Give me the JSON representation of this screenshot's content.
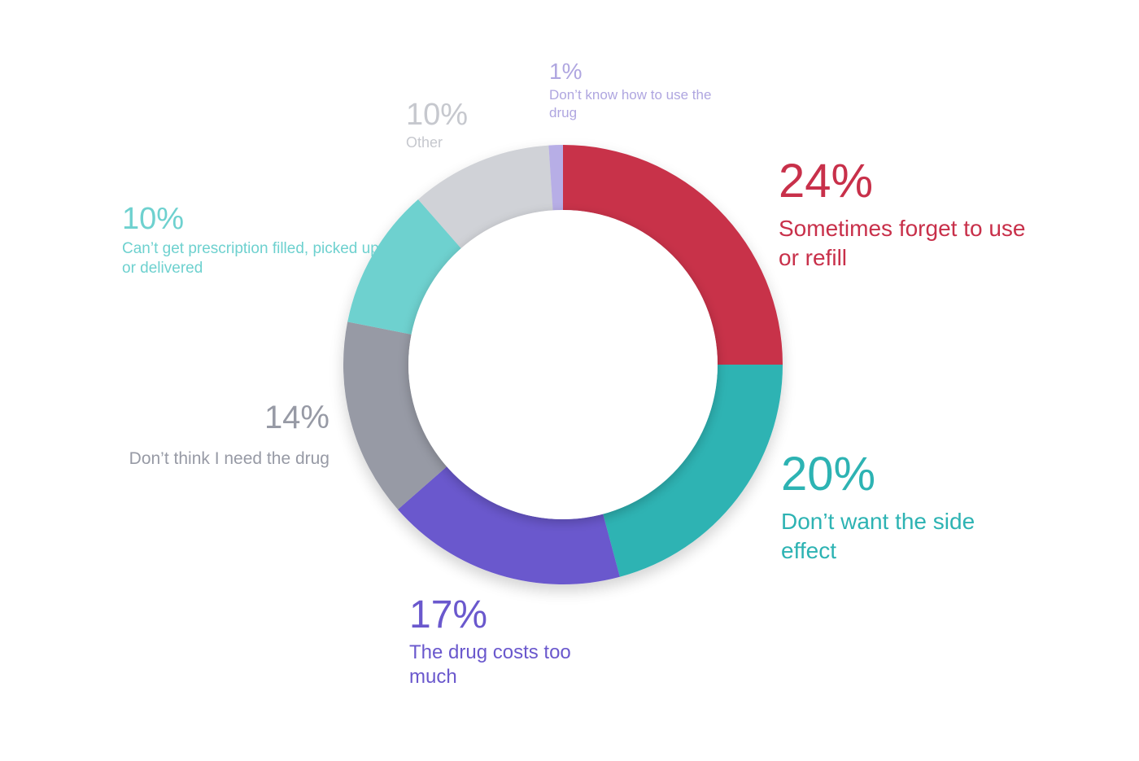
{
  "chart_data": {
    "type": "pie",
    "style": "donut",
    "slices": [
      {
        "percent_label": "24%",
        "value": 24,
        "label": "Sometimes forget to use or refill",
        "color": "#C8304A",
        "text_color": "#C8304A"
      },
      {
        "percent_label": "20%",
        "value": 20,
        "label": "Don’t want the side effect",
        "color": "#2DB3B3",
        "text_color": "#2DB3B3"
      },
      {
        "percent_label": "17%",
        "value": 17,
        "label": "The drug costs too much",
        "color": "#6A58CD",
        "text_color": "#6A58CD"
      },
      {
        "percent_label": "14%",
        "value": 14,
        "label": "Don’t think I need the drug",
        "color": "#979AA5",
        "text_color": "#979AA5"
      },
      {
        "percent_label": "10%",
        "value": 10,
        "label": "Can’t get prescription filled, picked up or delivered",
        "color": "#6ED1CF",
        "text_color": "#6ED1CF"
      },
      {
        "percent_label": "10%",
        "value": 10,
        "label": "Other",
        "color": "#D0D2D7",
        "text_color": "#C6C8CE"
      },
      {
        "percent_label": "1%",
        "value": 1,
        "label": "Don’t know how to use the drug",
        "color": "#B7AEE6",
        "text_color": "#AFA6E0"
      }
    ],
    "title": "",
    "legend": "none"
  }
}
